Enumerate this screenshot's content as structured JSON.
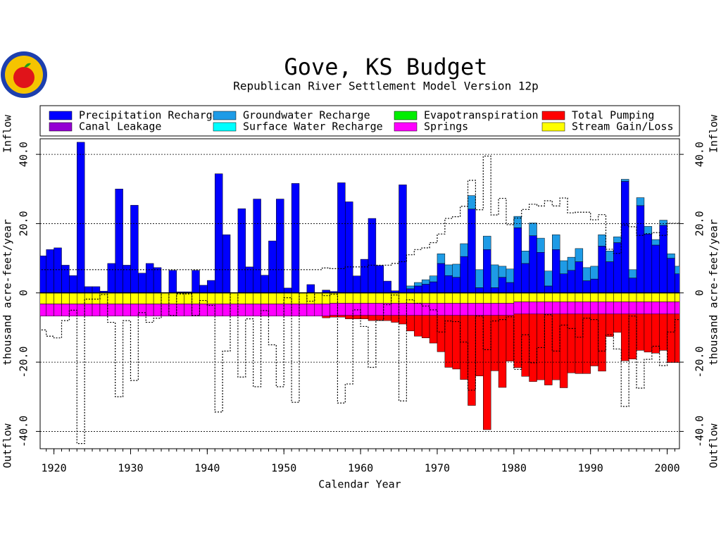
{
  "chart_data": {
    "type": "stacked_bar",
    "title": "Gove, KS Budget",
    "subtitle": "Republican River Settlement Model Version 12p",
    "xlabel": "Calendar Year",
    "ylabel": "thousand acre-feet/year",
    "ylabel_top": "Inflow",
    "ylabel_bottom": "Outflow",
    "x": [
      1918,
      1919,
      1920,
      1921,
      1922,
      1923,
      1924,
      1925,
      1926,
      1927,
      1928,
      1929,
      1930,
      1931,
      1932,
      1933,
      1934,
      1935,
      1936,
      1937,
      1938,
      1939,
      1940,
      1941,
      1942,
      1943,
      1944,
      1945,
      1946,
      1947,
      1948,
      1949,
      1950,
      1951,
      1952,
      1953,
      1954,
      1955,
      1956,
      1957,
      1958,
      1959,
      1960,
      1961,
      1962,
      1963,
      1964,
      1965,
      1966,
      1967,
      1968,
      1969,
      1970,
      1971,
      1972,
      1973,
      1974,
      1975,
      1976,
      1977,
      1978,
      1979,
      1980,
      1981,
      1982,
      1983,
      1984,
      1985,
      1986,
      1987,
      1988,
      1989,
      1990,
      1991,
      1992,
      1993,
      1994,
      1995,
      1996,
      1997,
      1998,
      1999,
      2000,
      2001
    ],
    "xlim": [
      1918.2,
      2001.6
    ],
    "xticks": [
      1920,
      1930,
      1940,
      1950,
      1960,
      1970,
      1980,
      1990,
      2000
    ],
    "ylim": [
      -45,
      44.5
    ],
    "yticks": [
      {
        "value": -40,
        "label": "-40.0"
      },
      {
        "value": -20,
        "label": "-20.0"
      },
      0,
      {
        "value": 20,
        "label": "20.0"
      },
      {
        "value": 40,
        "label": "40.0"
      }
    ],
    "grid": true,
    "series": [
      {
        "name": "Precipitation Recharge",
        "color": "#0000ff",
        "values": [
          10.7,
          12.5,
          13,
          8,
          5,
          43.5,
          1.8,
          1.8,
          0.5,
          8.5,
          30,
          8,
          25.3,
          5.7,
          8.5,
          7.3,
          0,
          6.5,
          0.3,
          0.3,
          6.5,
          2.2,
          3.6,
          34.4,
          16.8,
          0,
          24.3,
          7.5,
          27.1,
          5.1,
          15,
          27.1,
          1.4,
          31.6,
          0,
          2.4,
          0,
          0.8,
          0.4,
          31.8,
          26.3,
          4.9,
          9.7,
          21.5,
          7.9,
          3.4,
          0.6,
          31.2,
          1.2,
          2,
          2.5,
          3.2,
          8.5,
          5,
          4.5,
          10.5,
          24.2,
          1.5,
          12.5,
          1.5,
          4.5,
          3,
          18.8,
          8.5,
          16.5,
          11.7,
          2,
          12.5,
          5.5,
          6.5,
          9,
          3.5,
          4,
          13.5,
          9,
          14.5,
          32.2,
          4.3,
          25.2,
          17,
          13.8,
          19.5,
          10,
          5.5
        ]
      },
      {
        "name": "Groundwater Recharge",
        "color": "#1e9be6",
        "values": [
          0,
          0,
          0,
          0,
          0,
          0,
          0,
          0,
          0,
          0,
          0,
          0,
          0,
          0,
          0,
          0,
          0,
          0,
          0,
          0,
          0,
          0,
          0,
          0,
          0,
          0,
          0,
          0,
          0,
          0,
          0,
          0,
          0,
          0,
          0,
          0,
          0,
          0,
          0,
          0,
          0,
          0,
          0,
          0,
          0,
          0,
          0,
          0,
          0.8,
          1,
          1.3,
          1.7,
          2.8,
          3.1,
          3.8,
          3.7,
          3.9,
          5.2,
          3.9,
          6.6,
          3.2,
          3.9,
          3.3,
          3.6,
          3.7,
          4.1,
          4.3,
          4.3,
          3.8,
          3.8,
          3.8,
          3.8,
          3.7,
          3.3,
          3.1,
          1.7,
          0.6,
          2.4,
          2.3,
          2.2,
          1.6,
          1.5,
          1.3,
          2.2
        ]
      },
      {
        "name": "Surface Water Recharge",
        "color": "#00ffff",
        "values": [
          0,
          0,
          0,
          0,
          0,
          0,
          0,
          0,
          0,
          0,
          0,
          0,
          0,
          0,
          0,
          0,
          0,
          0,
          0,
          0,
          0,
          0,
          0,
          0,
          0,
          0,
          0,
          0,
          0,
          0,
          0,
          0,
          0,
          0,
          0,
          0,
          0,
          0,
          0,
          0,
          0,
          0,
          0,
          0,
          0,
          0,
          0,
          0,
          0,
          0,
          0,
          0,
          0,
          0,
          0,
          0,
          0,
          0,
          0,
          0,
          0,
          0,
          0,
          0,
          0,
          0,
          0,
          0,
          0,
          0,
          0,
          0,
          0,
          0,
          0,
          0,
          0,
          0,
          0,
          0,
          0,
          0,
          0,
          0
        ]
      },
      {
        "name": "Canal Leakage",
        "color": "#9400d3",
        "values": [
          0,
          0,
          0,
          0,
          0,
          0,
          0,
          0,
          0,
          0,
          0,
          0,
          0,
          0,
          0,
          0,
          0,
          0,
          0,
          0,
          0,
          0,
          0,
          0,
          0,
          0,
          0,
          0,
          0,
          0,
          0,
          0,
          0,
          0,
          0,
          0,
          0,
          0,
          0,
          0,
          0,
          0,
          0,
          0,
          0,
          0,
          0,
          0,
          0,
          0,
          0,
          0,
          0,
          0,
          0,
          0,
          0,
          0,
          0,
          0,
          0,
          0,
          0,
          0,
          0,
          0,
          0,
          0,
          0,
          0,
          0,
          0,
          0,
          0,
          0,
          0,
          0,
          0,
          0,
          0,
          0,
          0,
          0,
          0
        ]
      },
      {
        "name": "Stream Gain/Loss",
        "color": "#ffff00",
        "values": [
          -3.2,
          -3.2,
          -3.2,
          -3.2,
          -3.2,
          -3.2,
          -3.2,
          -3.2,
          -3.2,
          -3.2,
          -3.2,
          -3.2,
          -3.2,
          -3.2,
          -3.2,
          -3.2,
          -3.2,
          -3.2,
          -3.2,
          -3.2,
          -3.2,
          -3.2,
          -3.2,
          -3.2,
          -3.2,
          -3.2,
          -3.2,
          -3.2,
          -3.2,
          -3.2,
          -3.2,
          -3.2,
          -3.2,
          -3.2,
          -3.2,
          -3.2,
          -3.2,
          -3.2,
          -3,
          -3,
          -3,
          -3,
          -3,
          -3,
          -3,
          -3,
          -3,
          -3,
          -3,
          -3,
          -3,
          -3,
          -3,
          -3,
          -3,
          -3,
          -3,
          -3,
          -3,
          -3,
          -3,
          -3,
          -2.6,
          -2.6,
          -2.6,
          -2.6,
          -2.6,
          -2.6,
          -2.6,
          -2.6,
          -2.6,
          -2.6,
          -2.6,
          -2.6,
          -2.6,
          -2.6,
          -2.6,
          -2.6,
          -2.6,
          -2.6,
          -2.6,
          -2.6,
          -2.6,
          -2.6
        ]
      },
      {
        "name": "Springs",
        "color": "#ff00ff",
        "values": [
          -3.5,
          -3.5,
          -3.5,
          -3.5,
          -3.5,
          -3.5,
          -3.5,
          -3.5,
          -3.5,
          -3.5,
          -3.5,
          -3.5,
          -3.5,
          -3.5,
          -3.5,
          -3.5,
          -3.5,
          -3.5,
          -3.5,
          -3.5,
          -3.5,
          -3.5,
          -3.5,
          -3.5,
          -3.5,
          -3.5,
          -3.5,
          -3.5,
          -3.5,
          -3.5,
          -3.5,
          -3.5,
          -3.5,
          -3.5,
          -3.5,
          -3.5,
          -3.5,
          -3.5,
          -3.5,
          -3.5,
          -3.5,
          -3.5,
          -3.5,
          -3.5,
          -3.5,
          -3.5,
          -3.5,
          -3.5,
          -3.5,
          -3.5,
          -3.5,
          -3.5,
          -3.5,
          -3.5,
          -3.5,
          -3.5,
          -3.5,
          -3.5,
          -3.5,
          -3.5,
          -3.5,
          -3.5,
          -3.5,
          -3.5,
          -3.5,
          -3.5,
          -3.5,
          -3.5,
          -3.5,
          -3.5,
          -3.5,
          -3.5,
          -3.5,
          -3.5,
          -3.5,
          -3.5,
          -3.5,
          -3.5,
          -3.5,
          -3.5,
          -3.5,
          -3.5,
          -3.5,
          -3.5
        ]
      },
      {
        "name": "Evapotranspiration",
        "color": "#00ee00",
        "values": [
          0,
          0,
          0,
          0,
          0,
          0,
          0,
          0,
          0,
          0,
          0,
          0,
          0,
          0,
          0,
          0,
          0,
          0,
          0,
          0,
          0,
          0,
          0,
          0,
          0,
          0,
          0,
          0,
          0,
          0,
          0,
          0,
          0,
          0,
          0,
          0,
          0,
          0,
          0,
          0,
          0,
          0,
          0,
          0,
          0,
          0,
          0,
          0,
          0,
          0,
          0,
          0,
          0,
          0,
          0,
          0,
          0,
          0,
          0,
          0,
          0,
          0,
          0,
          0,
          0,
          0,
          0,
          0,
          0,
          0,
          0,
          0,
          0,
          0,
          0,
          0,
          0,
          0,
          0,
          0,
          0,
          0,
          0,
          0
        ]
      },
      {
        "name": "Total Pumping",
        "color": "#ff0000",
        "values": [
          0,
          0,
          0,
          0,
          0,
          0,
          0,
          0,
          0,
          0,
          0,
          0,
          0,
          0,
          0,
          0,
          0,
          0,
          0,
          0,
          0,
          0,
          0,
          0,
          0,
          0,
          0,
          0,
          0,
          0,
          0,
          0,
          0,
          0,
          0,
          0,
          0,
          -0.5,
          -0.5,
          -0.5,
          -1,
          -1,
          -1,
          -1.5,
          -1.5,
          -1.5,
          -2,
          -2.5,
          -4.5,
          -6,
          -6.5,
          -8,
          -10.5,
          -15,
          -15.5,
          -18.5,
          -26,
          -17.5,
          -33,
          -16,
          -20.8,
          -13.2,
          -15.5,
          -18,
          -19.5,
          -19,
          -20.5,
          -19,
          -21.3,
          -17,
          -17.2,
          -17.2,
          -15,
          -16.5,
          -6.5,
          -5.3,
          -13.5,
          -13,
          -10.5,
          -11,
          -11.3,
          -10.5,
          -14,
          -14
        ]
      }
    ]
  }
}
